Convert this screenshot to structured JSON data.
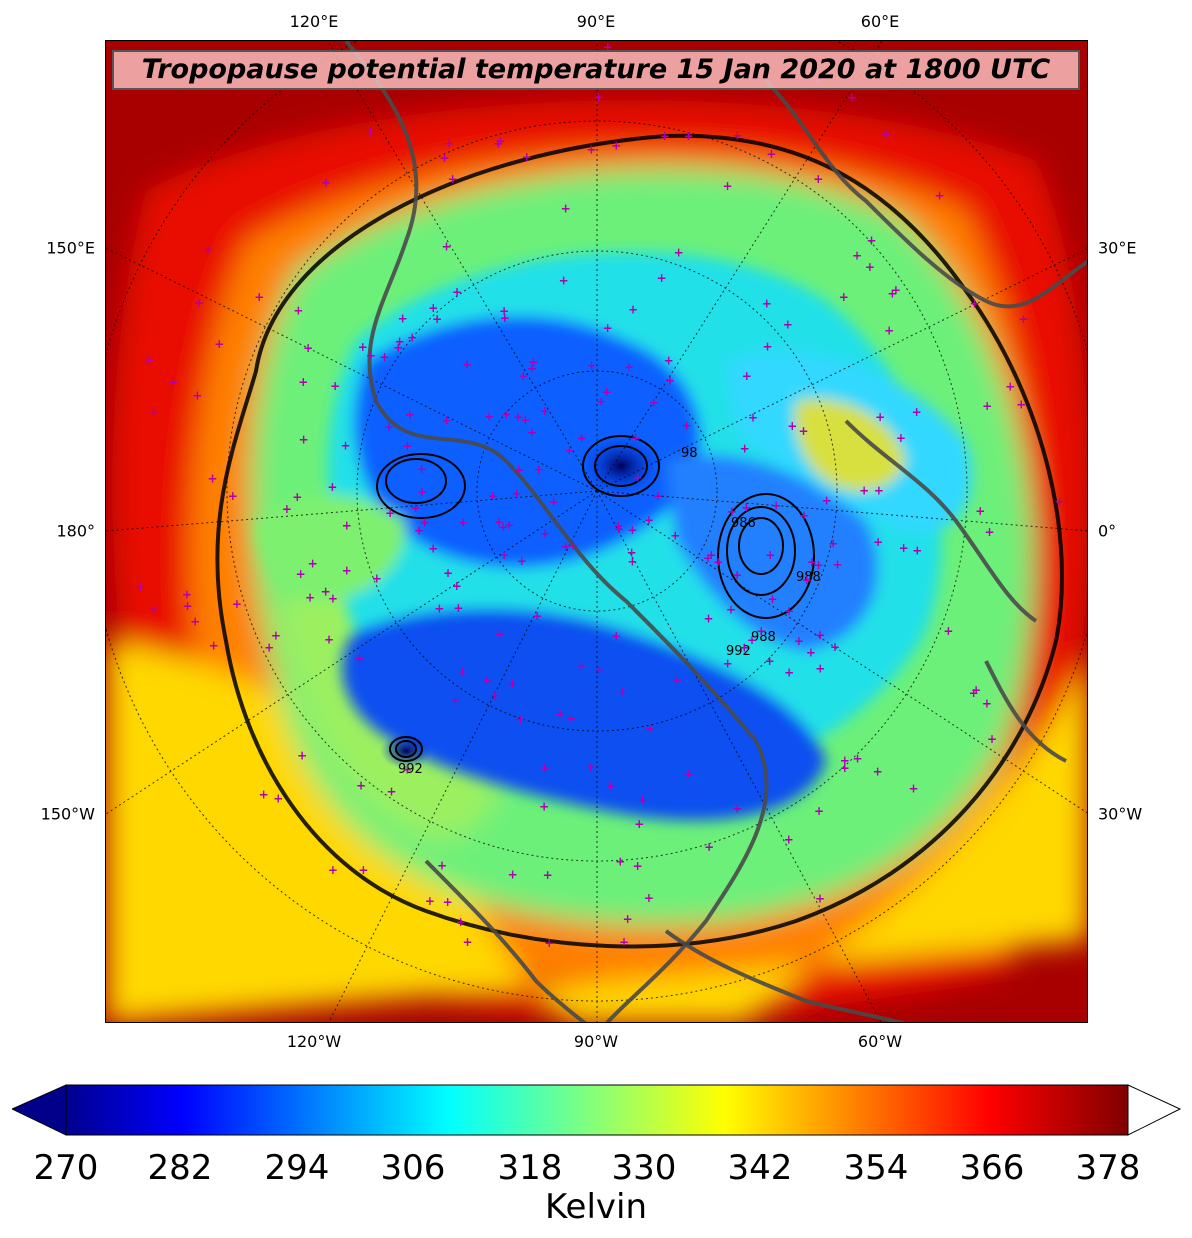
{
  "map": {
    "title": "Tropopause potential temperature 15 Jan 2020 at 1800 UTC",
    "projection": "polar-stereographic-north",
    "field": "tropopause potential temperature",
    "overlay": "sea-level pressure contours",
    "pressure_labels": [
      "988",
      "988",
      "992",
      "992",
      "98",
      "986"
    ],
    "station_marker_color": "#b000b0",
    "coastline_color": "#4a4a4a"
  },
  "axes": {
    "top": [
      "120°E",
      "90°E",
      "60°E"
    ],
    "bottom": [
      "120°W",
      "90°W",
      "60°W"
    ],
    "left": [
      "150°E",
      "180°",
      "150°W"
    ],
    "right": [
      "30°E",
      "0°",
      "30°W"
    ]
  },
  "colorbar": {
    "label": "Kelvin",
    "ticks": [
      "270",
      "282",
      "294",
      "306",
      "318",
      "330",
      "342",
      "354",
      "366",
      "378"
    ],
    "min": 270,
    "max": 378,
    "colormap": "jet",
    "extend_low_color": "#00008b",
    "extend_high_color": "#ffffff"
  }
}
